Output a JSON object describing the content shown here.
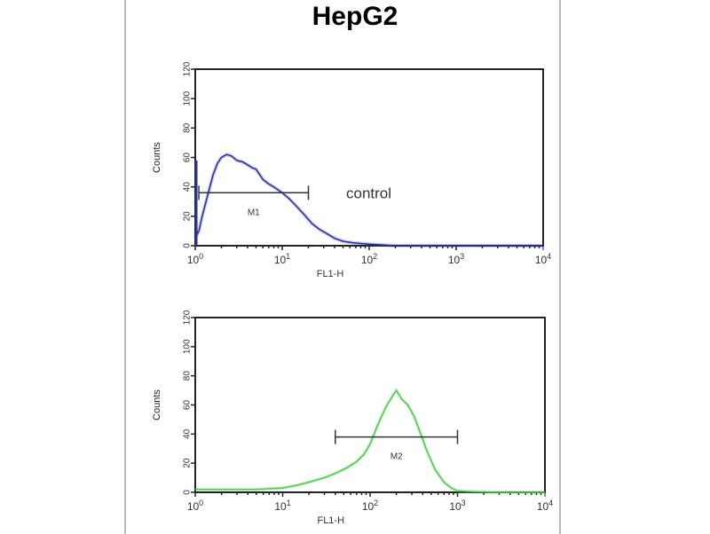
{
  "chart_data": [
    {
      "type": "line",
      "title": "HepG2",
      "xlabel": "FL1-H",
      "ylabel": "Counts",
      "xscale": "log",
      "xlim": [
        1,
        10000
      ],
      "ylim": [
        0,
        120
      ],
      "xticks": [
        "10^0",
        "10^1",
        "10^2",
        "10^3",
        "10^4"
      ],
      "yticks": [
        0,
        20,
        40,
        60,
        80,
        100,
        120
      ],
      "color": "#2b2f9e",
      "annotation": "control",
      "gate": {
        "label": "M1",
        "x": [
          1.1,
          20
        ],
        "y": 36
      },
      "x": [
        1,
        1.1,
        1.2,
        1.4,
        1.6,
        1.8,
        2,
        2.3,
        2.6,
        3,
        3.5,
        4,
        4.5,
        5,
        6,
        7,
        8,
        10,
        12,
        15,
        18,
        22,
        27,
        33,
        40,
        50,
        65,
        80,
        100,
        150,
        200,
        500,
        1000,
        10000
      ],
      "values": [
        5,
        10,
        20,
        35,
        48,
        56,
        60,
        62,
        61,
        58,
        57,
        55,
        53,
        52,
        45,
        42,
        40,
        36,
        32,
        26,
        21,
        15,
        11,
        8,
        5,
        3,
        2,
        1.5,
        1,
        0.5,
        0,
        0,
        0,
        0
      ]
    },
    {
      "type": "line",
      "xlabel": "FL1-H",
      "ylabel": "Counts",
      "xscale": "log",
      "xlim": [
        1,
        10000
      ],
      "ylim": [
        0,
        120
      ],
      "xticks": [
        "10^0",
        "10^1",
        "10^2",
        "10^3",
        "10^4"
      ],
      "yticks": [
        0,
        20,
        40,
        60,
        80,
        100,
        120
      ],
      "color": "#4fc94f",
      "gate": {
        "label": "M2",
        "x": [
          40,
          1000
        ],
        "y": 38
      },
      "x": [
        1,
        2,
        5,
        10,
        15,
        20,
        30,
        40,
        55,
        70,
        85,
        100,
        120,
        150,
        180,
        200,
        230,
        270,
        320,
        380,
        450,
        550,
        700,
        850,
        1000,
        1500,
        3000,
        10000
      ],
      "values": [
        2,
        2,
        2,
        3,
        5,
        7,
        10,
        13,
        17,
        21,
        26,
        33,
        45,
        58,
        66,
        70,
        64,
        60,
        52,
        40,
        28,
        16,
        7,
        3,
        1,
        0.5,
        0,
        0
      ]
    }
  ]
}
